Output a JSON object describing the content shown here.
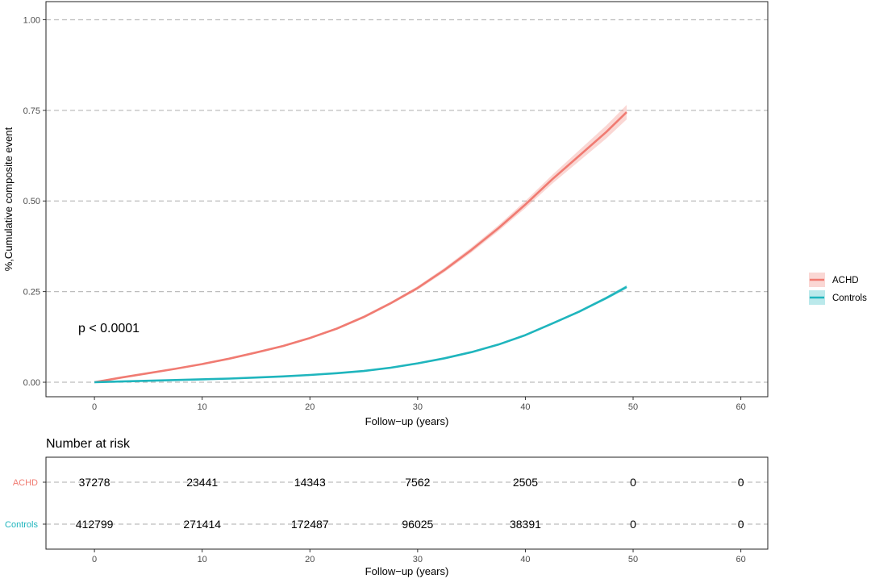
{
  "chart_data": [
    {
      "type": "line",
      "xlabel": "Follow−up (years)",
      "ylabel": "%,Cumulative composite event",
      "xlim": [
        -4.5,
        62.5
      ],
      "ylim": [
        -0.04,
        1.05
      ],
      "x_ticks": [
        0,
        10,
        20,
        30,
        40,
        50,
        60
      ],
      "y_ticks": [
        0.0,
        0.25,
        0.5,
        0.75,
        1.0
      ],
      "y_tick_labels": [
        "0.00",
        "0.25",
        "0.50",
        "0.75",
        "1.00"
      ],
      "grid": "horizontal dashed",
      "annotation": "p < 0.0001",
      "legend_position": "right",
      "series": [
        {
          "name": "ACHD",
          "color": "#F07B72",
          "x": [
            0,
            2.5,
            5,
            7.5,
            10,
            12.5,
            15,
            17.5,
            20,
            22.5,
            25,
            27.5,
            30,
            32.5,
            35,
            37.5,
            40,
            42.5,
            45,
            47.5,
            49.4
          ],
          "values": [
            0.0,
            0.013,
            0.025,
            0.037,
            0.05,
            0.065,
            0.082,
            0.1,
            0.122,
            0.148,
            0.18,
            0.218,
            0.26,
            0.31,
            0.365,
            0.425,
            0.49,
            0.56,
            0.625,
            0.69,
            0.745
          ],
          "ci_upper": [
            0.0,
            0.014,
            0.026,
            0.038,
            0.052,
            0.067,
            0.084,
            0.103,
            0.125,
            0.151,
            0.184,
            0.222,
            0.265,
            0.316,
            0.372,
            0.433,
            0.5,
            0.572,
            0.64,
            0.708,
            0.765
          ],
          "ci_lower": [
            0.0,
            0.012,
            0.024,
            0.036,
            0.048,
            0.063,
            0.08,
            0.097,
            0.119,
            0.145,
            0.176,
            0.214,
            0.255,
            0.304,
            0.358,
            0.417,
            0.48,
            0.548,
            0.61,
            0.672,
            0.725
          ]
        },
        {
          "name": "Controls",
          "color": "#1FB5BD",
          "x": [
            0,
            2.5,
            5,
            7.5,
            10,
            12.5,
            15,
            17.5,
            20,
            22.5,
            25,
            27.5,
            30,
            32.5,
            35,
            37.5,
            40,
            42.5,
            45,
            47.5,
            49.4
          ],
          "values": [
            0.0,
            0.002,
            0.004,
            0.006,
            0.008,
            0.01,
            0.013,
            0.016,
            0.02,
            0.025,
            0.031,
            0.04,
            0.052,
            0.066,
            0.083,
            0.104,
            0.13,
            0.162,
            0.195,
            0.232,
            0.263
          ],
          "ci_upper": [
            0.0,
            0.002,
            0.004,
            0.006,
            0.008,
            0.01,
            0.013,
            0.016,
            0.02,
            0.025,
            0.031,
            0.04,
            0.053,
            0.067,
            0.084,
            0.105,
            0.132,
            0.164,
            0.198,
            0.236,
            0.268
          ],
          "ci_lower": [
            0.0,
            0.002,
            0.004,
            0.006,
            0.008,
            0.01,
            0.013,
            0.016,
            0.02,
            0.025,
            0.031,
            0.04,
            0.051,
            0.065,
            0.082,
            0.103,
            0.128,
            0.16,
            0.192,
            0.228,
            0.258
          ]
        }
      ]
    },
    {
      "type": "table",
      "title": "Number at risk",
      "xlabel": "Follow−up (years)",
      "xlim": [
        -4.5,
        62.5
      ],
      "x_ticks": [
        0,
        10,
        20,
        30,
        40,
        50,
        60
      ],
      "rows": [
        {
          "name": "ACHD",
          "color": "#F07B72",
          "values": [
            "37278",
            "23441",
            "14343",
            "7562",
            "2505",
            "0",
            "0"
          ]
        },
        {
          "name": "Controls",
          "color": "#1FB5BD",
          "values": [
            "412799",
            "271414",
            "172487",
            "96025",
            "38391",
            "0",
            "0"
          ]
        }
      ]
    }
  ]
}
